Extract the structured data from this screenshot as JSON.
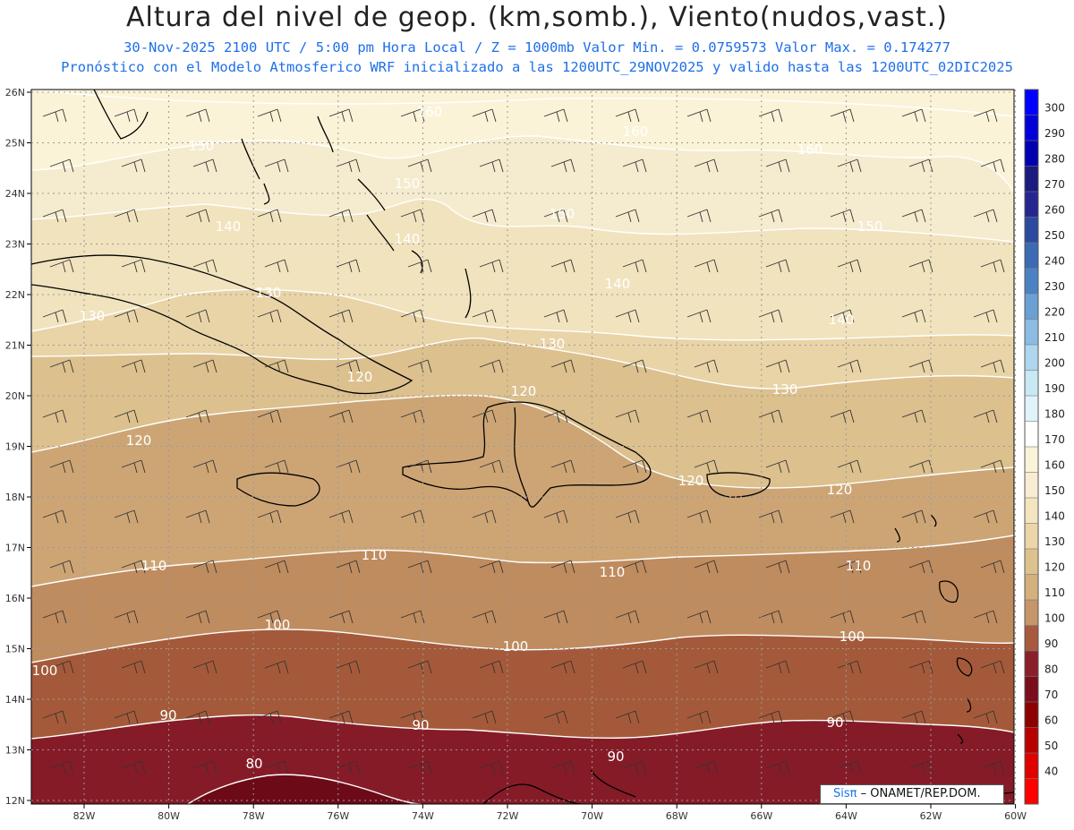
{
  "header": {
    "title": "Altura del nivel de geop. (km,somb.), Viento(nudos,vast.)",
    "line1": "30-Nov-2025  2100 UTC / 5:00 pm Hora Local / Z = 1000mb  Valor Min. = 0.0759573  Valor Max. = 0.174277",
    "line2": "Pronóstico con el Modelo Atmosferico WRF inicializado a las 1200UTC_29NOV2025 y valido hasta las  1200UTC_02DIC2025"
  },
  "map": {
    "lat_labels": [
      "26N",
      "25N",
      "24N",
      "23N",
      "22N",
      "21N",
      "20N",
      "19N",
      "18N",
      "17N",
      "16N",
      "15N",
      "14N",
      "13N",
      "12N"
    ],
    "lon_labels": [
      "82W",
      "80W",
      "78W",
      "76W",
      "74W",
      "72W",
      "70W",
      "68W",
      "66W",
      "64W",
      "62W",
      "60W"
    ],
    "contour_labels": [
      {
        "text": "160"
      },
      {
        "text": "150"
      },
      {
        "text": "160"
      },
      {
        "text": "150"
      },
      {
        "text": "150"
      },
      {
        "text": "140"
      },
      {
        "text": "140"
      },
      {
        "text": "150"
      },
      {
        "text": "160"
      },
      {
        "text": "130"
      },
      {
        "text": "140"
      },
      {
        "text": "130"
      },
      {
        "text": "140"
      },
      {
        "text": "120"
      },
      {
        "text": "120"
      },
      {
        "text": "130"
      },
      {
        "text": "130"
      },
      {
        "text": "120"
      },
      {
        "text": "120"
      },
      {
        "text": "120"
      },
      {
        "text": "110"
      },
      {
        "text": "110"
      },
      {
        "text": "110"
      },
      {
        "text": "110"
      },
      {
        "text": "100"
      },
      {
        "text": "100"
      },
      {
        "text": "100"
      },
      {
        "text": "100"
      },
      {
        "text": "90"
      },
      {
        "text": "90"
      },
      {
        "text": "90"
      },
      {
        "text": "90"
      },
      {
        "text": "80"
      }
    ]
  },
  "colorbar": {
    "ticks": [
      "300",
      "290",
      "280",
      "270",
      "260",
      "250",
      "240",
      "230",
      "220",
      "210",
      "200",
      "190",
      "180",
      "170",
      "160",
      "150",
      "140",
      "130",
      "120",
      "110",
      "100",
      "90",
      "80",
      "70",
      "60",
      "50",
      "40"
    ],
    "colors": [
      "#0000ff",
      "#0000d8",
      "#0000b0",
      "#1a1a80",
      "#262690",
      "#2d4aa0",
      "#3c6ab4",
      "#4b82c4",
      "#6aa0d4",
      "#8cbce2",
      "#aed6ee",
      "#c8e8f4",
      "#e0f2fa",
      "#ffffff",
      "#fbf3d8",
      "#f8edd2",
      "#f4e4c0",
      "#ecd5a8",
      "#dec28e",
      "#d3b07c",
      "#c59669",
      "#a85a3e",
      "#8a1f2a",
      "#7a0e1c",
      "#8c0000",
      "#b80000",
      "#e00000",
      "#ff0000"
    ]
  },
  "credit": {
    "brand": "Sisπ",
    "text": "– ONAMET/REP.DOM."
  }
}
